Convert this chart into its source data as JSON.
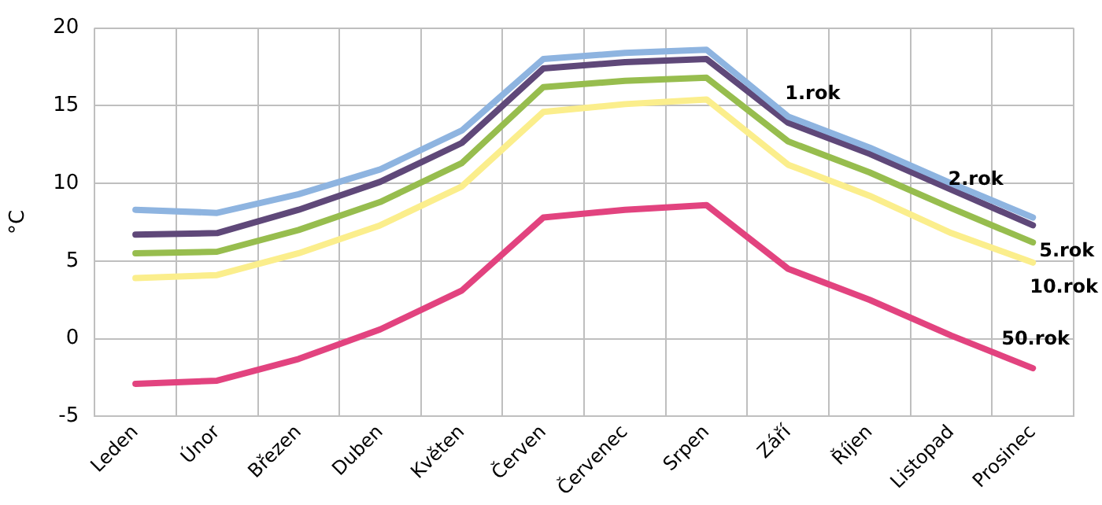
{
  "chart_data": {
    "type": "line",
    "ylabel": "°C",
    "categories": [
      "Leden",
      "Únor",
      "Březen",
      "Duben",
      "Květen",
      "Červen",
      "Červenec",
      "Srpen",
      "Září",
      "Říjen",
      "Listopad",
      "Prosinec"
    ],
    "series": [
      {
        "name": "1.rok",
        "color": "#8eb4e0",
        "values": [
          8.3,
          8.1,
          9.3,
          10.9,
          13.4,
          18.0,
          18.4,
          18.6,
          14.3,
          12.3,
          10.0,
          7.8
        ]
      },
      {
        "name": "2.rok",
        "color": "#5f4879",
        "values": [
          6.7,
          6.8,
          8.3,
          10.1,
          12.6,
          17.4,
          17.8,
          18.0,
          13.9,
          11.9,
          9.6,
          7.3
        ]
      },
      {
        "name": "5.rok",
        "color": "#97bd4e",
        "values": [
          5.5,
          5.6,
          7.0,
          8.8,
          11.3,
          16.2,
          16.6,
          16.8,
          12.7,
          10.7,
          8.4,
          6.2
        ]
      },
      {
        "name": "10.rok",
        "color": "#fbee8c",
        "values": [
          3.9,
          4.1,
          5.5,
          7.3,
          9.8,
          14.6,
          15.1,
          15.4,
          11.2,
          9.2,
          6.8,
          4.9
        ]
      },
      {
        "name": "50.rok",
        "color": "#e2437f",
        "values": [
          -2.9,
          -2.7,
          -1.3,
          0.6,
          3.1,
          7.8,
          8.3,
          8.6,
          4.5,
          2.5,
          0.2,
          -1.9
        ]
      }
    ],
    "ylim": [
      -5,
      20
    ],
    "yticks": [
      -5,
      0,
      5,
      10,
      15,
      20
    ],
    "grid": true,
    "legend": false,
    "marker": "none",
    "line_style": "solid"
  }
}
